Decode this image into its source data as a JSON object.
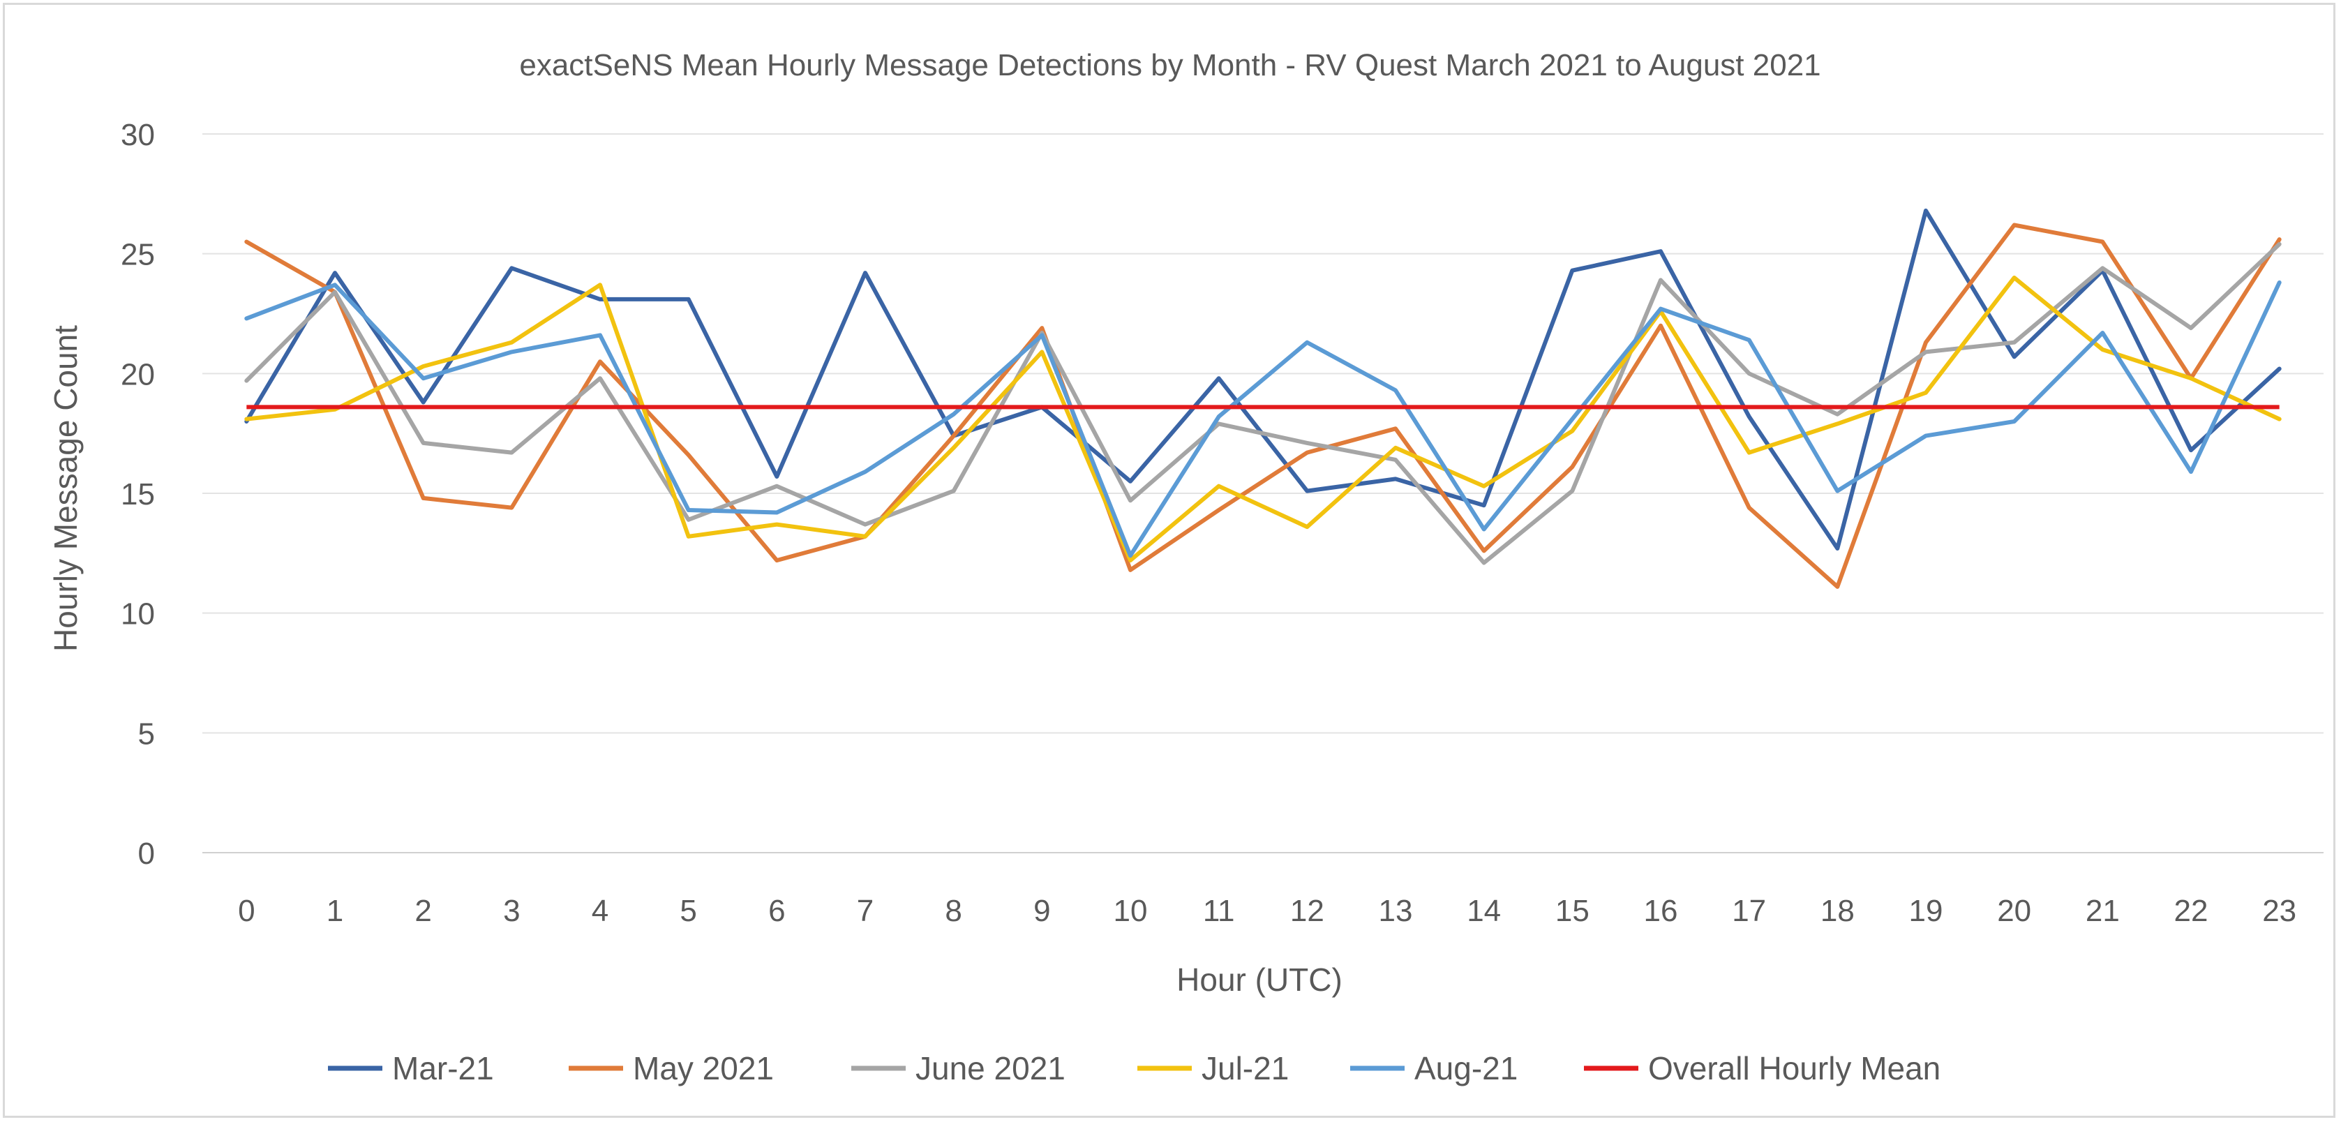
{
  "chart_data": {
    "type": "line",
    "title": "exactSeNS Mean Hourly Message Detections by Month - RV Quest March 2021 to August 2021",
    "xlabel": "Hour (UTC)",
    "ylabel": "Hourly Message Count",
    "ylim": [
      0,
      30
    ],
    "yticks": [
      0,
      5,
      10,
      15,
      20,
      25,
      30
    ],
    "x": [
      0,
      1,
      2,
      3,
      4,
      5,
      6,
      7,
      8,
      9,
      10,
      11,
      12,
      13,
      14,
      15,
      16,
      17,
      18,
      19,
      20,
      21,
      22,
      23
    ],
    "grid": true,
    "legend_position": "bottom",
    "series": [
      {
        "name": "Mar-21",
        "color": "#3a64a5",
        "values": [
          18.0,
          24.2,
          18.8,
          24.4,
          23.1,
          23.1,
          15.7,
          24.2,
          17.4,
          18.6,
          15.5,
          19.8,
          15.1,
          15.6,
          14.5,
          24.3,
          25.1,
          18.2,
          12.7,
          26.8,
          20.7,
          24.3,
          16.8,
          20.2
        ]
      },
      {
        "name": "May 2021",
        "color": "#e07b39",
        "values": [
          25.5,
          23.4,
          14.8,
          14.4,
          20.5,
          16.6,
          12.2,
          13.2,
          17.4,
          21.9,
          11.8,
          14.3,
          16.7,
          17.7,
          12.6,
          16.1,
          22.0,
          14.4,
          11.1,
          21.3,
          26.2,
          25.5,
          19.8,
          25.6
        ]
      },
      {
        "name": "June 2021",
        "color": "#a5a5a5",
        "values": [
          19.7,
          23.4,
          17.1,
          16.7,
          19.8,
          13.9,
          15.3,
          13.7,
          15.1,
          21.7,
          14.7,
          17.9,
          17.1,
          16.4,
          12.1,
          15.1,
          23.9,
          20.0,
          18.3,
          20.9,
          21.3,
          24.4,
          21.9,
          25.4
        ]
      },
      {
        "name": "Jul-21",
        "color": "#f2c20f",
        "values": [
          18.1,
          18.5,
          20.3,
          21.3,
          23.7,
          13.2,
          13.7,
          13.2,
          16.9,
          20.9,
          12.2,
          15.3,
          13.6,
          16.9,
          15.3,
          17.6,
          22.6,
          16.7,
          17.9,
          19.2,
          24.0,
          21.0,
          19.8,
          18.1
        ]
      },
      {
        "name": "Aug-21",
        "color": "#5b9bd5",
        "values": [
          22.3,
          23.7,
          19.8,
          20.9,
          21.6,
          14.3,
          14.2,
          15.9,
          18.3,
          21.6,
          12.4,
          18.2,
          21.3,
          19.3,
          13.5,
          18.1,
          22.7,
          21.4,
          15.1,
          17.4,
          18.0,
          21.7,
          15.9,
          23.8
        ]
      }
    ],
    "reference_line": {
      "name": "Overall Hourly Mean",
      "value": 18.6,
      "color": "#e31a1c"
    }
  }
}
